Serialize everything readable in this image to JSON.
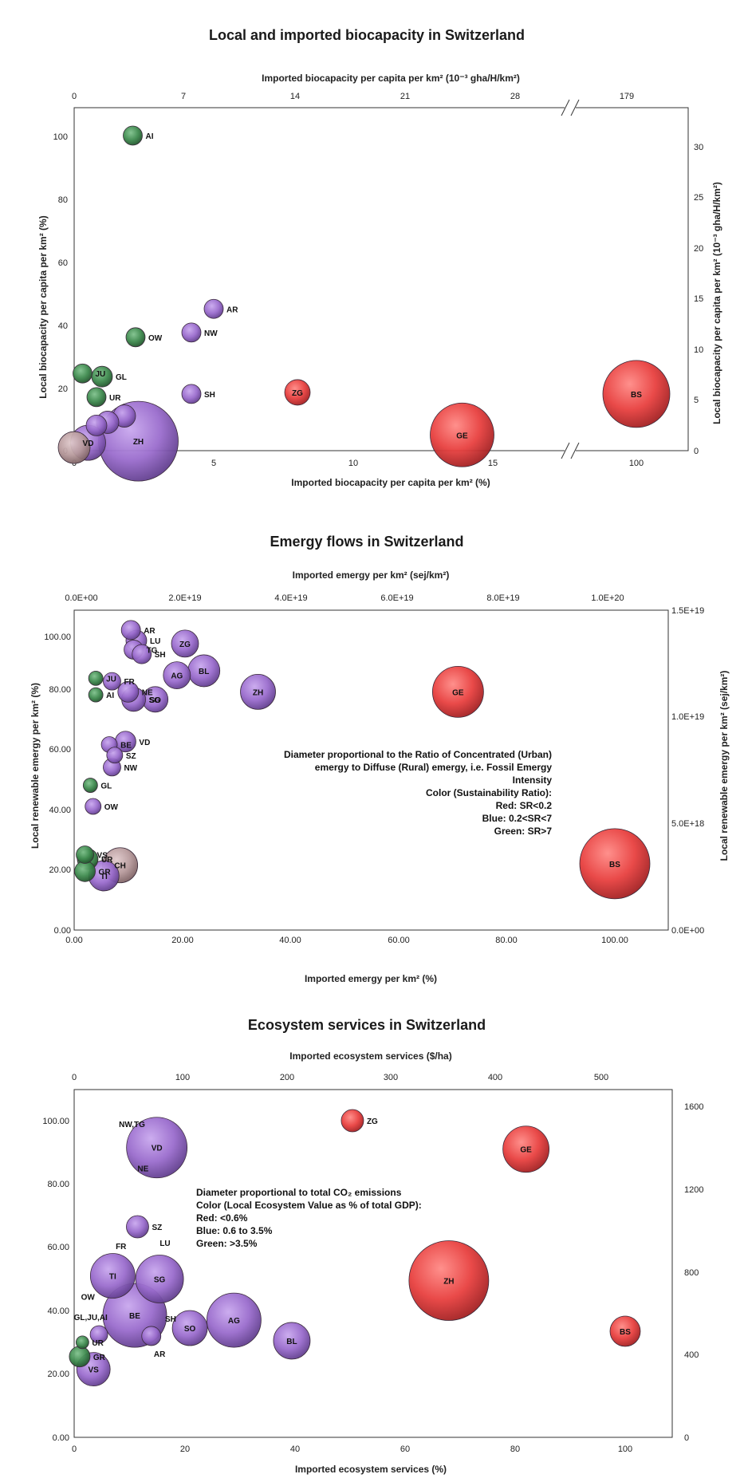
{
  "colors": {
    "red": "#e8403f",
    "purple": "#9a6ccd",
    "green": "#3e8a4e",
    "pink": "#b79a9c",
    "outline": "#3a2a3a"
  },
  "chart_data": [
    {
      "type": "scatter",
      "title": "Local and imported biocapacity in Switzerland",
      "xlabel": "Imported biocapacity per capita per km² (%)",
      "x2label": "Imported biocapacity per capita per km²  (10⁻³ gha/H/km²)",
      "ylabel": "Local biocapacity per capita per km² (%)",
      "y2label": "Local biocapacity per capita per km² (10⁻³ gha/H/km²)",
      "xticks": [
        "0",
        "5",
        "10",
        "15",
        "100"
      ],
      "x2ticks": [
        "0",
        "7",
        "14",
        "21",
        "28",
        "179"
      ],
      "yticks": [
        "0",
        "20",
        "40",
        "60",
        "80",
        "100"
      ],
      "y2ticks": [
        "0",
        "5",
        "10",
        "15",
        "20",
        "25",
        "30"
      ],
      "axis_break": true,
      "points": [
        {
          "label": "AI",
          "x": 2.1,
          "y": 100,
          "size": 12,
          "color": "green"
        },
        {
          "label": "AR",
          "x": 5.0,
          "y": 45,
          "size": 12,
          "color": "purple"
        },
        {
          "label": "NW",
          "x": 4.2,
          "y": 37.5,
          "size": 12,
          "color": "purple"
        },
        {
          "label": "OW",
          "x": 2.2,
          "y": 36,
          "size": 12,
          "color": "green"
        },
        {
          "label": "JU",
          "x": 0.3,
          "y": 24.5,
          "size": 12,
          "color": "green"
        },
        {
          "label": "GL",
          "x": 1.0,
          "y": 23.5,
          "size": 13,
          "color": "green"
        },
        {
          "label": "UR",
          "x": 0.8,
          "y": 17,
          "size": 12,
          "color": "green"
        },
        {
          "label": "SH",
          "x": 4.2,
          "y": 18,
          "size": 12,
          "color": "purple"
        },
        {
          "label": "ZG",
          "x": 8.0,
          "y": 18.5,
          "size": 16,
          "color": "red"
        },
        {
          "label": "BS",
          "x": 100,
          "y": 18,
          "size": 42,
          "color": "red"
        },
        {
          "label": "GE",
          "x": 13.9,
          "y": 5,
          "size": 40,
          "color": "red"
        },
        {
          "label": "ZH",
          "x": 2.3,
          "y": 3,
          "size": 50,
          "color": "purple"
        },
        {
          "label": "VD",
          "x": 0.5,
          "y": 2.5,
          "size": 22,
          "color": "purple"
        },
        {
          "label": "",
          "x": 1.8,
          "y": 11,
          "size": 14,
          "color": "purple"
        },
        {
          "label": "",
          "x": 0.8,
          "y": 8,
          "size": 13,
          "color": "purple"
        },
        {
          "label": "",
          "x": 1.2,
          "y": 9,
          "size": 14,
          "color": "purple"
        },
        {
          "label": "",
          "x": 0.0,
          "y": 1,
          "size": 20,
          "color": "pink"
        }
      ]
    },
    {
      "type": "scatter",
      "title": "Emergy flows in Switzerland",
      "xlabel": "Imported emergy per km² (%)",
      "x2label": "Imported emergy per km² (sej/km²)",
      "ylabel": "Local renewable emergy per km² (%)",
      "y2label": "Local renewable emergy per km² (sej/km²)",
      "xticks": [
        "0.00",
        "20.00",
        "40.00",
        "60.00",
        "80.00",
        "100.00"
      ],
      "x2ticks": [
        "0.0E+00",
        "2.0E+19",
        "4.0E+19",
        "6.0E+19",
        "8.0E+19",
        "1.0E+20"
      ],
      "yticks": [
        "0.00",
        "20.00",
        "40.00",
        "60.00",
        "80.00",
        "100.00"
      ],
      "y2ticks": [
        "0.0E+00",
        "5.0E+18",
        "1.0E+19",
        "1.5E+19"
      ],
      "note": [
        "Diameter proportional to the Ratio of Concentrated (Urban)",
        "emergy to Diffuse (Rural) emergy, i.e. Fossil Emergy",
        "Intensity",
        "Color (Sustainability Ratio):",
        "Red: SR<0.2",
        "Blue: 0.2<SR<7",
        "Green: SR>7"
      ],
      "points": [
        {
          "label": "AR",
          "x": 10.5,
          "y": 99.5,
          "size": 12,
          "color": "purple"
        },
        {
          "label": "LU",
          "x": 11.5,
          "y": 96,
          "size": 13,
          "color": "purple"
        },
        {
          "label": "TG",
          "x": 11.0,
          "y": 93,
          "size": 12,
          "color": "purple"
        },
        {
          "label": "SH",
          "x": 12.5,
          "y": 91.5,
          "size": 12,
          "color": "purple"
        },
        {
          "label": "ZG",
          "x": 20.5,
          "y": 95,
          "size": 17,
          "color": "purple"
        },
        {
          "label": "AG",
          "x": 19.0,
          "y": 84.5,
          "size": 17,
          "color": "purple"
        },
        {
          "label": "BL",
          "x": 24.0,
          "y": 86,
          "size": 20,
          "color": "purple"
        },
        {
          "label": "JU",
          "x": 4.0,
          "y": 83.5,
          "size": 9,
          "color": "green"
        },
        {
          "label": "FR",
          "x": 7.0,
          "y": 82.5,
          "size": 11,
          "color": "purple"
        },
        {
          "label": "NE",
          "x": 10.0,
          "y": 79,
          "size": 13,
          "color": "purple"
        },
        {
          "label": "AI",
          "x": 4.0,
          "y": 78,
          "size": 9,
          "color": "green"
        },
        {
          "label": "SG",
          "x": 11.0,
          "y": 76.5,
          "size": 15,
          "color": "purple"
        },
        {
          "label": "SO",
          "x": 15.0,
          "y": 76.5,
          "size": 16,
          "color": "purple"
        },
        {
          "label": "ZH",
          "x": 34.0,
          "y": 79,
          "size": 22,
          "color": "purple"
        },
        {
          "label": "GE",
          "x": 71.0,
          "y": 79,
          "size": 32,
          "color": "red"
        },
        {
          "label": "BE",
          "x": 6.5,
          "y": 61.5,
          "size": 10,
          "color": "purple"
        },
        {
          "label": "VD",
          "x": 9.5,
          "y": 62.5,
          "size": 13,
          "color": "purple"
        },
        {
          "label": "SZ",
          "x": 7.5,
          "y": 58,
          "size": 10,
          "color": "purple"
        },
        {
          "label": "NW",
          "x": 7.0,
          "y": 54,
          "size": 11,
          "color": "purple"
        },
        {
          "label": "GL",
          "x": 3.0,
          "y": 48,
          "size": 9,
          "color": "green"
        },
        {
          "label": "OW",
          "x": 3.5,
          "y": 41,
          "size": 10,
          "color": "purple"
        },
        {
          "label": "VS",
          "x": 2.0,
          "y": 25,
          "size": 11,
          "color": "green"
        },
        {
          "label": "UR",
          "x": 2.5,
          "y": 23.5,
          "size": 13,
          "color": "green"
        },
        {
          "label": "CH",
          "x": 8.5,
          "y": 21.5,
          "size": 22,
          "color": "pink"
        },
        {
          "label": "GR",
          "x": 2.0,
          "y": 19.5,
          "size": 13,
          "color": "green"
        },
        {
          "label": "TI",
          "x": 5.5,
          "y": 18,
          "size": 19,
          "color": "purple"
        },
        {
          "label": "BS",
          "x": 100,
          "y": 22,
          "size": 44,
          "color": "red"
        }
      ]
    },
    {
      "type": "scatter",
      "title": "Ecosystem services in Switzerland",
      "xlabel": "Imported ecosystem services (%)",
      "x2label": "Imported ecosystem services ($/ha)",
      "ylabel": "",
      "y2label": "",
      "xticks": [
        "0",
        "20",
        "40",
        "60",
        "80",
        "100"
      ],
      "x2ticks": [
        "0",
        "100",
        "200",
        "300",
        "400",
        "500"
      ],
      "yticks": [
        "0.00",
        "20.00",
        "40.00",
        "60.00",
        "80.00",
        "100.00"
      ],
      "y2ticks": [
        "0",
        "400",
        "800",
        "1200",
        "1600"
      ],
      "note": [
        "Diameter proportional to total CO₂ emissions",
        "Color (Local Ecosystem Value as % of total GDP):",
        "Red: <0.6%",
        "Blue: 0.6 to 3.5%",
        "Green: >3.5%"
      ],
      "points": [
        {
          "label": "NW,TG",
          "x": 10.5,
          "y": 99,
          "size": 0,
          "color": "purple"
        },
        {
          "label": "VD",
          "x": 15.0,
          "y": 91.5,
          "size": 38,
          "color": "purple"
        },
        {
          "label": "NE",
          "x": 12.5,
          "y": 85,
          "size": 0,
          "color": "purple"
        },
        {
          "label": "ZG",
          "x": 50.5,
          "y": 100,
          "size": 14,
          "color": "red"
        },
        {
          "label": "GE",
          "x": 82.0,
          "y": 91,
          "size": 29,
          "color": "red"
        },
        {
          "label": "SZ",
          "x": 11.5,
          "y": 66.5,
          "size": 14,
          "color": "purple"
        },
        {
          "label": "FR",
          "x": 8.5,
          "y": 60.5,
          "size": 0,
          "color": "purple"
        },
        {
          "label": "LU",
          "x": 16.5,
          "y": 61.5,
          "size": 0,
          "color": "purple"
        },
        {
          "label": "TI",
          "x": 7.0,
          "y": 51,
          "size": 28,
          "color": "purple"
        },
        {
          "label": "SG",
          "x": 15.5,
          "y": 50,
          "size": 30,
          "color": "purple"
        },
        {
          "label": "ZH",
          "x": 68.0,
          "y": 49.5,
          "size": 50,
          "color": "red"
        },
        {
          "label": "OW",
          "x": 2.5,
          "y": 44.5,
          "size": 0,
          "color": "green"
        },
        {
          "label": "BE",
          "x": 11.0,
          "y": 38.5,
          "size": 40,
          "color": "purple"
        },
        {
          "label": "GL,JU,AI",
          "x": 3.0,
          "y": 38,
          "size": 0,
          "color": "green"
        },
        {
          "label": "SH",
          "x": 17.5,
          "y": 37.5,
          "size": 0,
          "color": "purple"
        },
        {
          "label": "SO",
          "x": 21.0,
          "y": 34.5,
          "size": 22,
          "color": "purple"
        },
        {
          "label": "AG",
          "x": 29.0,
          "y": 37,
          "size": 34,
          "color": "purple"
        },
        {
          "label": "BL",
          "x": 39.5,
          "y": 30.5,
          "size": 23,
          "color": "purple"
        },
        {
          "label": "BS",
          "x": 100,
          "y": 33.5,
          "size": 19,
          "color": "red"
        },
        {
          "label": "UR",
          "x": 1.5,
          "y": 30,
          "size": 8,
          "color": "green"
        },
        {
          "label": "AR",
          "x": 15.5,
          "y": 26.5,
          "size": 0,
          "color": "purple"
        },
        {
          "label": "GR",
          "x": 1.0,
          "y": 25.5,
          "size": 13,
          "color": "green"
        },
        {
          "label": "VS",
          "x": 3.5,
          "y": 21.5,
          "size": 21,
          "color": "purple"
        },
        {
          "label": "",
          "x": 4.5,
          "y": 32.5,
          "size": 11,
          "color": "purple"
        },
        {
          "label": "",
          "x": 14.0,
          "y": 32,
          "size": 12,
          "color": "purple"
        }
      ]
    }
  ]
}
